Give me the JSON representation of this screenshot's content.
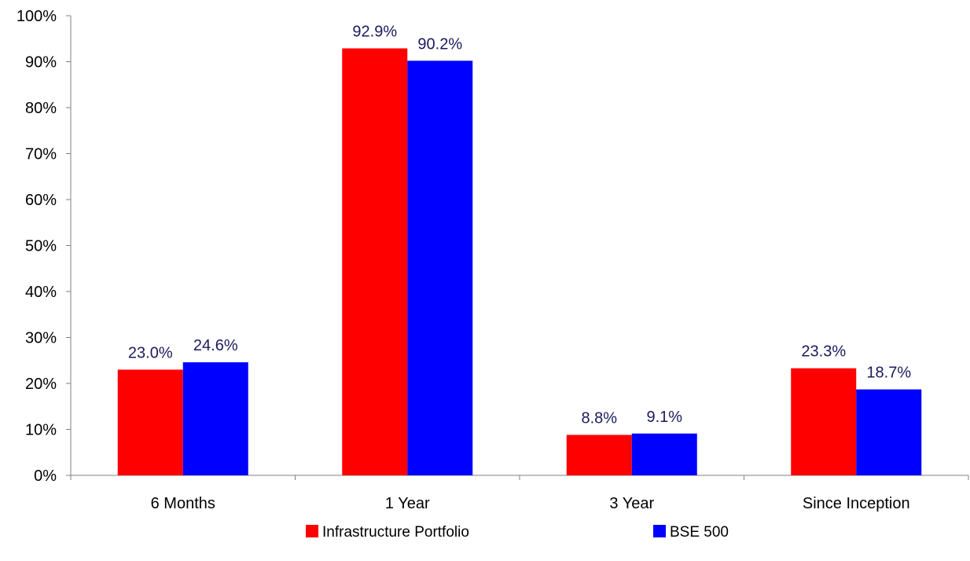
{
  "chart_data": {
    "type": "bar",
    "categories": [
      "6 Months",
      "1 Year",
      "3 Year",
      "Since Inception"
    ],
    "series": [
      {
        "name": "Infrastructure Portfolio",
        "color": "#ff0000",
        "values": [
          23.0,
          92.9,
          8.8,
          23.3
        ],
        "labels": [
          "23.0%",
          "92.9%",
          "8.8%",
          "23.3%"
        ]
      },
      {
        "name": "BSE 500",
        "color": "#0000ff",
        "values": [
          24.6,
          90.2,
          9.1,
          18.7
        ],
        "labels": [
          "24.6%",
          "90.2%",
          "9.1%",
          "18.7%"
        ]
      }
    ],
    "ylim": [
      0,
      100
    ],
    "yticks": [
      0,
      10,
      20,
      30,
      40,
      50,
      60,
      70,
      80,
      90,
      100
    ],
    "ytick_labels": [
      "0%",
      "10%",
      "20%",
      "30%",
      "40%",
      "50%",
      "60%",
      "70%",
      "80%",
      "90%",
      "100%"
    ],
    "title": "",
    "xlabel": "",
    "ylabel": "",
    "grid": false,
    "legend_position": "bottom"
  }
}
